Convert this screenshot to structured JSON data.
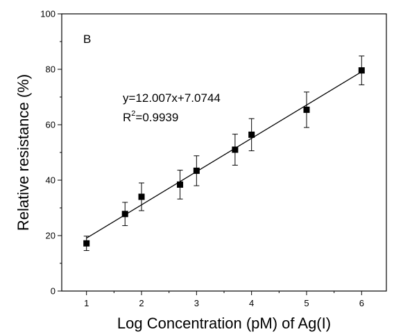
{
  "chart_data": {
    "type": "scatter",
    "panel_label": "B",
    "xlabel": "Log Concentration (pM) of Ag(I)",
    "ylabel": "Relative resistance (%)",
    "xlim": [
      0.55,
      6.45
    ],
    "ylim": [
      0,
      100
    ],
    "x_ticks": [
      1,
      2,
      3,
      4,
      5,
      6
    ],
    "x_minor_ticks": [
      1.5,
      2.5,
      3.5,
      4.5,
      5.5
    ],
    "y_ticks": [
      0,
      20,
      40,
      60,
      80,
      100
    ],
    "y_minor_ticks": [
      10,
      30,
      50,
      70,
      90
    ],
    "grid": false,
    "series": [
      {
        "x": [
          1,
          1.7,
          2,
          2.7,
          3,
          3.7,
          4,
          5,
          6
        ],
        "y": [
          17.2,
          27.8,
          34.0,
          38.4,
          43.4,
          51.0,
          56.4,
          65.4,
          79.6
        ],
        "error": [
          2.6,
          4.2,
          5.0,
          5.2,
          5.4,
          5.6,
          5.8,
          6.4,
          5.2
        ]
      }
    ],
    "fit": {
      "slope": 12.007,
      "intercept": 7.0744,
      "x_range": [
        1,
        6
      ],
      "equation": "y=12.007x+7.0744",
      "r2_prefix": "R",
      "r2_sup": "2",
      "r2_value": "=0.9939"
    }
  }
}
